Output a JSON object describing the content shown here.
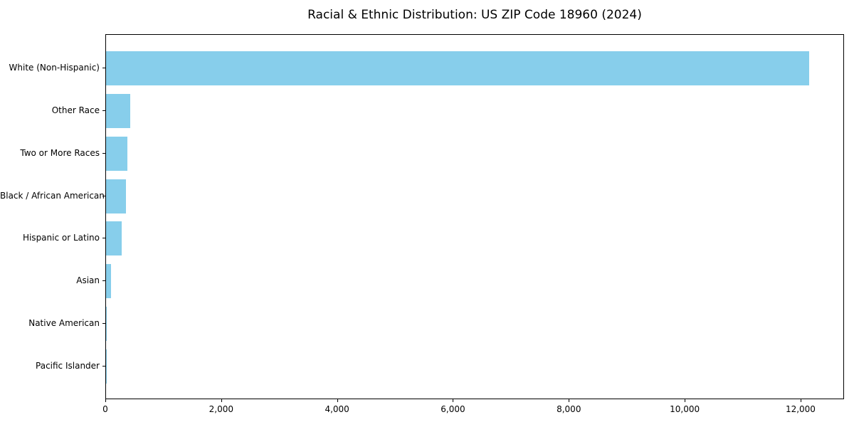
{
  "chart_data": {
    "type": "bar",
    "orientation": "horizontal",
    "title": "Racial & Ethnic Distribution: US ZIP Code 18960 (2024)",
    "categories": [
      "White (Non-Hispanic)",
      "Other Race",
      "Two or More Races",
      "Black / African American",
      "Hispanic or Latino",
      "Asian",
      "Native American",
      "Pacific Islander"
    ],
    "values": [
      12140,
      420,
      365,
      340,
      265,
      80,
      12,
      2
    ],
    "xlabel": "",
    "ylabel": "",
    "xlim": [
      0,
      12750
    ],
    "xticks": [
      0,
      2000,
      4000,
      6000,
      8000,
      10000,
      12000
    ],
    "xtick_labels": [
      "0",
      "2,000",
      "4,000",
      "6,000",
      "8,000",
      "10,000",
      "12,000"
    ],
    "bar_color": "#87CEEB",
    "spine_color": "#000000",
    "background_color": "#ffffff",
    "grid": false,
    "legend": null
  }
}
